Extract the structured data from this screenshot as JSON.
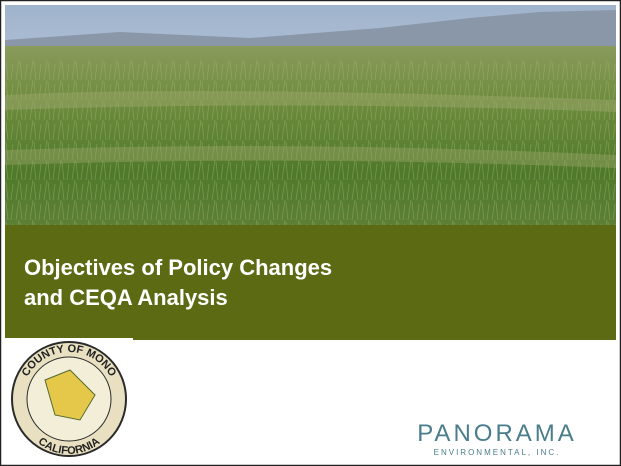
{
  "slide": {
    "title_lines": [
      "Objectives of Policy Changes",
      "and CEQA Analysis"
    ],
    "seal": {
      "top_text": "COUNTY OF MONO",
      "bottom_text": "CALIFORNIA"
    },
    "logo": {
      "name": "PANORAMA",
      "tagline": "ENVIRONMENTAL, INC."
    }
  }
}
